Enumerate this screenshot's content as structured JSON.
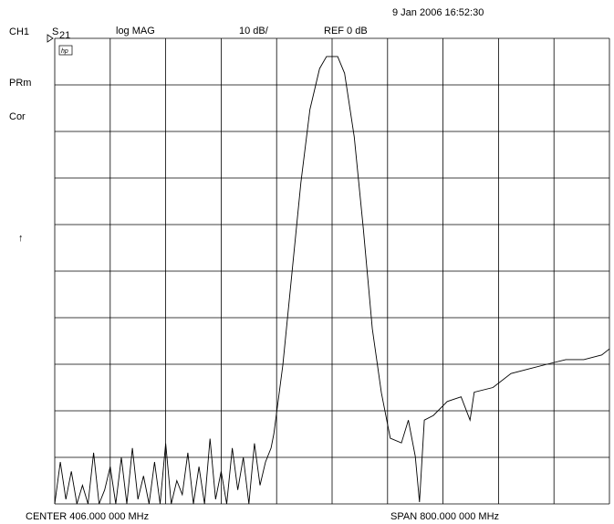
{
  "chart_data": {
    "type": "line",
    "date": "9 Jan 2006  16:52:30",
    "channel": "CH1",
    "parameter": "S",
    "parameter_sub": "21",
    "format": "log MAG",
    "scale": "10 dB/",
    "reference": "REF 0 dB",
    "annotations": [
      "PRm",
      "Cor",
      "↑"
    ],
    "center": "CENTER  406.000 000 MHz",
    "span": "SPAN  800.000 000 MHz",
    "color": "#000000",
    "grid": true,
    "xlim": [
      6,
      806
    ],
    "ylim": [
      -100,
      0
    ],
    "xticks": [
      6,
      86,
      166,
      246,
      326,
      406,
      486,
      566,
      646,
      726,
      806
    ],
    "yticks": [
      0,
      -10,
      -20,
      -30,
      -40,
      -50,
      -60,
      -70,
      -80,
      -90,
      -100
    ],
    "x": [
      6,
      14,
      22,
      30,
      38,
      46,
      54,
      62,
      70,
      78,
      86,
      94,
      102,
      110,
      118,
      126,
      134,
      142,
      150,
      158,
      166,
      174,
      182,
      190,
      198,
      206,
      214,
      222,
      230,
      238,
      246,
      254,
      262,
      270,
      278,
      286,
      294,
      302,
      310,
      318,
      322,
      335,
      348,
      361,
      374,
      388,
      398,
      414,
      424,
      438,
      451,
      464,
      477,
      490,
      506,
      516,
      526,
      532,
      539,
      552,
      572,
      592,
      605,
      611,
      638,
      664,
      690,
      716,
      743,
      769,
      795,
      806
    ],
    "values": [
      -100,
      -91,
      -99,
      -93,
      -100,
      -96,
      -100,
      -89,
      -100,
      -97,
      -92,
      -100,
      -90,
      -100,
      -88,
      -99,
      -94,
      -100,
      -91,
      -100,
      -87,
      -100,
      -95,
      -98,
      -89,
      -100,
      -92,
      -100,
      -86,
      -99,
      -93,
      -100,
      -88,
      -97,
      -90,
      -100,
      -87,
      -96,
      -91,
      -88,
      -84.9,
      -70.2,
      -50.6,
      -31.0,
      -15.3,
      -6.5,
      -3.9,
      -3.9,
      -7.5,
      -21.2,
      -40.8,
      -62.4,
      -76.1,
      -85.9,
      -86.9,
      -82,
      -89.8,
      -99.6,
      -82,
      -81,
      -78,
      -77,
      -82,
      -76,
      -75,
      -72,
      -71,
      -70,
      -69,
      -69,
      -68,
      -66.7
    ]
  }
}
